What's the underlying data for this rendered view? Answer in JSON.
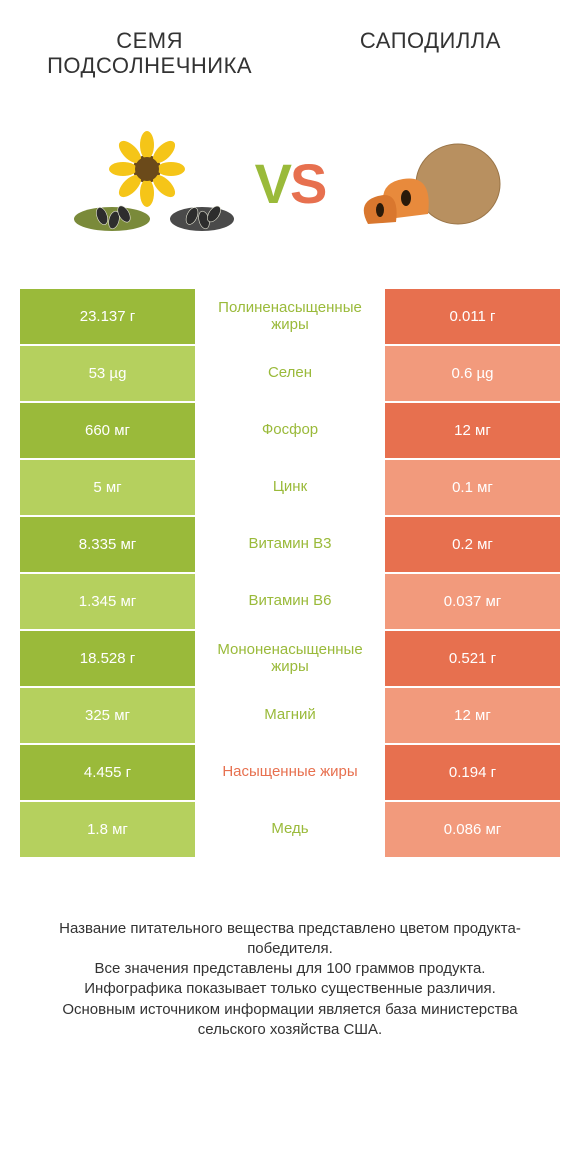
{
  "colors": {
    "left": "#9aba3a",
    "right": "#e7704f",
    "rowSepLeft": "#b5d05e",
    "rowSepRight": "#f29a7c",
    "text_dark": "#333333",
    "text_light": "#ffffff",
    "bg": "#ffffff"
  },
  "left_food": {
    "title": "СЕМЯ ПОДСОЛНЕЧНИКА"
  },
  "right_food": {
    "title": "САПОДИЛЛА"
  },
  "vs": {
    "v": "V",
    "s": "S"
  },
  "table": {
    "rows": [
      {
        "left": "23.137 г",
        "label": "Полиненасыщенные жиры",
        "right": "0.011 г",
        "winner": "left"
      },
      {
        "left": "53 µg",
        "label": "Селен",
        "right": "0.6 µg",
        "winner": "left"
      },
      {
        "left": "660 мг",
        "label": "Фосфор",
        "right": "12 мг",
        "winner": "left"
      },
      {
        "left": "5 мг",
        "label": "Цинк",
        "right": "0.1 мг",
        "winner": "left"
      },
      {
        "left": "8.335 мг",
        "label": "Витамин B3",
        "right": "0.2 мг",
        "winner": "left"
      },
      {
        "left": "1.345 мг",
        "label": "Витамин B6",
        "right": "0.037 мг",
        "winner": "left"
      },
      {
        "left": "18.528 г",
        "label": "Мононенасыщенные жиры",
        "right": "0.521 г",
        "winner": "left"
      },
      {
        "left": "325 мг",
        "label": "Магний",
        "right": "12 мг",
        "winner": "left"
      },
      {
        "left": "4.455 г",
        "label": "Насыщенные жиры",
        "right": "0.194 г",
        "winner": "right"
      },
      {
        "left": "1.8 мг",
        "label": "Медь",
        "right": "0.086 мг",
        "winner": "left"
      }
    ]
  },
  "footer": {
    "line1": "Название питательного вещества представлено цветом продукта-победителя.",
    "line2": "Все значения представлены для 100 граммов продукта.",
    "line3": "Инфографика показывает только существенные различия.",
    "line4": "Основным источником информации является база министерства сельского хозяйства США."
  }
}
